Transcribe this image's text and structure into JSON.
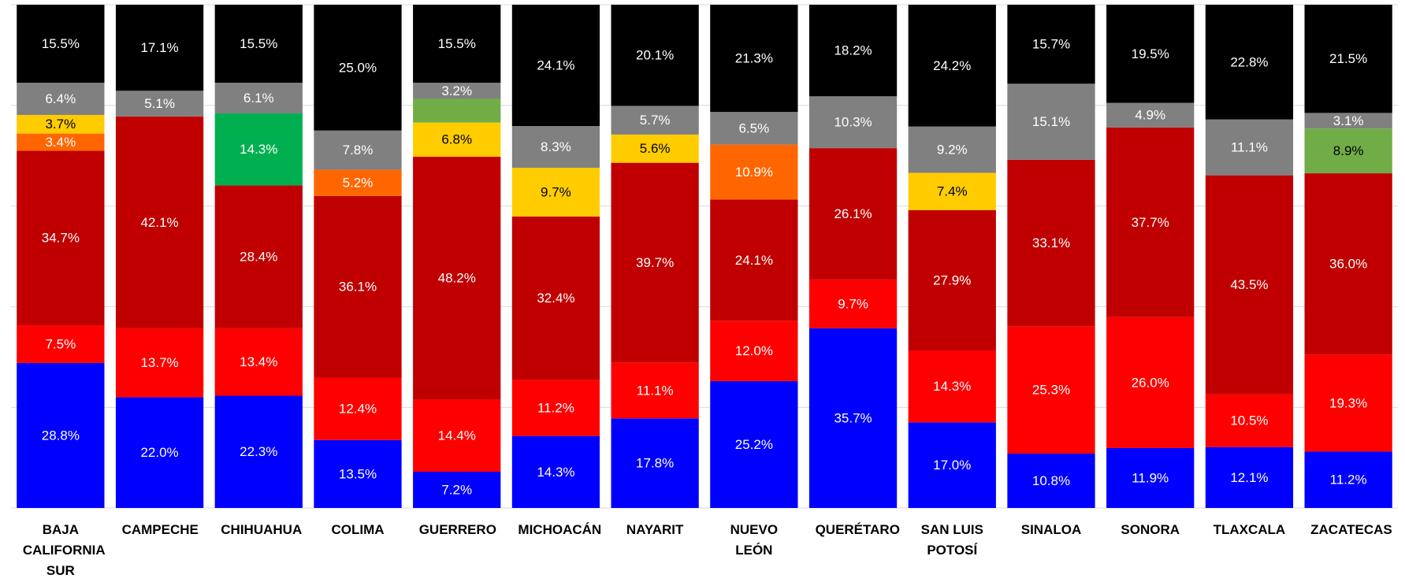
{
  "chart_data": {
    "type": "stacked_bar",
    "categories": [
      "BAJA CALIFORNIA SUR",
      "CAMPECHE",
      "CHIHUAHUA",
      "COLIMA",
      "GUERRERO",
      "MICHOACÁN",
      "NAYARIT",
      "NUEVO LEÓN",
      "QUERÉTARO",
      "SAN LUIS POTOSÍ",
      "SINALOA",
      "SONORA",
      "TLAXCALA",
      "ZACATECAS"
    ],
    "ylim": [
      0,
      100
    ],
    "yticks": [
      0,
      20,
      40,
      60,
      80,
      100
    ],
    "grid": true,
    "series": [
      {
        "color": "#0000ff",
        "values": [
          28.8,
          22.0,
          22.3,
          13.5,
          7.2,
          14.3,
          17.8,
          25.2,
          35.7,
          17.0,
          10.8,
          11.9,
          12.1,
          11.2
        ],
        "value_labels": [
          "28.8%",
          "22.0%",
          "22.3%",
          "13.5%",
          "7.2%",
          "14.3%",
          "17.8%",
          "25.2%",
          "35.7%",
          "17.0%",
          "10.8%",
          "11.9%",
          "12.1%",
          "11.2%"
        ]
      },
      {
        "color": "#ff0000",
        "values": [
          7.5,
          13.7,
          13.4,
          12.4,
          14.4,
          11.2,
          11.1,
          12.0,
          9.7,
          14.3,
          25.3,
          26.0,
          10.5,
          19.3
        ],
        "value_labels": [
          "7.5%",
          "13.7%",
          "13.4%",
          "12.4%",
          "14.4%",
          "11.2%",
          "11.1%",
          "12.0%",
          "9.7%",
          "14.3%",
          "25.3%",
          "26.0%",
          "10.5%",
          "19.3%"
        ]
      },
      {
        "color": "#c00000",
        "values": [
          34.7,
          42.1,
          28.4,
          36.1,
          48.2,
          32.4,
          39.7,
          24.1,
          26.1,
          27.9,
          33.1,
          37.7,
          43.5,
          36.0
        ],
        "value_labels": [
          "34.7%",
          "42.1%",
          "28.4%",
          "36.1%",
          "48.2%",
          "32.4%",
          "39.7%",
          "24.1%",
          "26.1%",
          "27.9%",
          "33.1%",
          "37.7%",
          "43.5%",
          "36.0%"
        ]
      },
      {
        "color": "#ff6600",
        "values": [
          3.4,
          null,
          null,
          5.2,
          null,
          null,
          null,
          10.9,
          null,
          null,
          null,
          null,
          null,
          null
        ],
        "value_labels": [
          "3.4%",
          null,
          null,
          "5.2%",
          null,
          null,
          null,
          "10.9%",
          null,
          null,
          null,
          null,
          null,
          null
        ]
      },
      {
        "color": "#ffcc00",
        "values": [
          3.7,
          null,
          null,
          null,
          6.8,
          9.7,
          5.6,
          null,
          null,
          7.4,
          null,
          null,
          null,
          null
        ],
        "value_labels": [
          "3.7%",
          null,
          null,
          null,
          "6.8%",
          "9.7%",
          "5.6%",
          null,
          null,
          "7.4%",
          null,
          null,
          null,
          null
        ]
      },
      {
        "color": "#00b050",
        "values": [
          null,
          null,
          14.3,
          null,
          null,
          null,
          null,
          null,
          null,
          null,
          null,
          null,
          null,
          null
        ],
        "value_labels": [
          null,
          null,
          "14.3%",
          null,
          null,
          null,
          null,
          null,
          null,
          null,
          null,
          null,
          null,
          null
        ]
      },
      {
        "color": "#70ad47",
        "values": [
          null,
          null,
          null,
          null,
          4.7,
          null,
          null,
          null,
          null,
          null,
          null,
          null,
          null,
          8.9
        ],
        "value_labels": [
          null,
          null,
          null,
          null,
          null,
          null,
          null,
          null,
          null,
          null,
          null,
          null,
          null,
          "8.9%"
        ]
      },
      {
        "color": "#808080",
        "values": [
          6.4,
          5.1,
          6.1,
          7.8,
          3.2,
          8.3,
          5.7,
          6.5,
          10.3,
          9.2,
          15.1,
          4.9,
          11.1,
          3.1
        ],
        "value_labels": [
          "6.4%",
          "5.1%",
          "6.1%",
          "7.8%",
          "3.2%",
          "8.3%",
          "5.7%",
          "6.5%",
          "10.3%",
          "9.2%",
          "15.1%",
          "4.9%",
          "11.1%",
          "3.1%"
        ]
      },
      {
        "color": "#000000",
        "values": [
          15.5,
          17.1,
          15.5,
          25.0,
          15.5,
          24.1,
          20.1,
          21.3,
          18.2,
          24.2,
          15.7,
          19.5,
          22.8,
          21.5
        ],
        "value_labels": [
          "15.5%",
          "17.1%",
          "15.5%",
          "25.0%",
          "15.5%",
          "24.1%",
          "20.1%",
          "21.3%",
          "18.2%",
          "24.2%",
          "15.7%",
          "19.5%",
          "22.8%",
          "21.5%"
        ]
      }
    ]
  }
}
